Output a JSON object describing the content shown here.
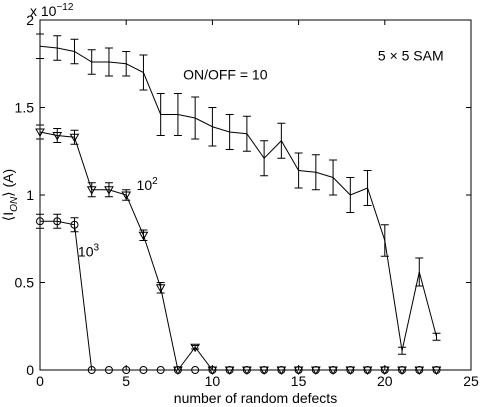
{
  "chart_data": {
    "type": "line",
    "xlabel": "number of random defects",
    "ylabel": {
      "main": "⟨I",
      "sub": "ON",
      "tail": "⟩ (A)"
    },
    "multiplier": {
      "base": "x 10",
      "exp": "−12"
    },
    "x": [
      0,
      1,
      2,
      3,
      4,
      5,
      6,
      7,
      8,
      9,
      10,
      11,
      12,
      13,
      14,
      15,
      16,
      17,
      18,
      19,
      20,
      21,
      22,
      23
    ],
    "series": [
      {
        "color": "#000000",
        "marker": "none",
        "values": [
          1.85,
          1.84,
          1.82,
          1.76,
          1.76,
          1.75,
          1.7,
          1.46,
          1.46,
          1.44,
          1.39,
          1.36,
          1.35,
          1.21,
          1.31,
          1.14,
          1.13,
          1.1,
          1.0,
          1.04,
          0.74,
          0.11,
          0.56,
          0.19
        ],
        "errors": [
          0.07,
          0.07,
          0.07,
          0.07,
          0.08,
          0.07,
          0.1,
          0.12,
          0.12,
          0.12,
          0.11,
          0.1,
          0.1,
          0.1,
          0.1,
          0.1,
          0.1,
          0.1,
          0.1,
          0.1,
          0.09,
          0.02,
          0.08,
          0.02
        ]
      },
      {
        "color": "#000000",
        "marker": "triangle",
        "values": [
          1.36,
          1.34,
          1.33,
          1.03,
          1.03,
          1.0,
          0.77,
          0.47,
          0,
          0.13,
          0,
          0,
          0,
          0,
          0,
          0,
          0,
          0,
          0,
          0,
          0,
          0,
          0,
          0
        ],
        "errors": [
          0.04,
          0.04,
          0.04,
          0.04,
          0.04,
          0.03,
          0.03,
          0.03,
          0,
          0.01,
          0,
          0,
          0,
          0,
          0,
          0,
          0,
          0,
          0,
          0,
          0,
          0,
          0,
          0
        ]
      },
      {
        "color": "#000000",
        "marker": "circle",
        "values": [
          0.85,
          0.85,
          0.83,
          0,
          0,
          0,
          0,
          0,
          0,
          0,
          0,
          0,
          0,
          0,
          0,
          0,
          0,
          0,
          0,
          0,
          0,
          0,
          0,
          0
        ],
        "errors": [
          0.04,
          0.04,
          0.04,
          0,
          0,
          0,
          0,
          0,
          0,
          0,
          0,
          0,
          0,
          0,
          0,
          0,
          0,
          0,
          0,
          0,
          0,
          0,
          0,
          0
        ]
      }
    ],
    "annotations": [
      {
        "text": "ON/OFF = 10",
        "x": 8.3,
        "y": 1.66
      },
      {
        "text": "10",
        "sup": "2",
        "x": 5.6,
        "y": 1.03
      },
      {
        "text": "10",
        "sup": "3",
        "x": 2.2,
        "y": 0.65
      },
      {
        "text": "5 × 5 SAM",
        "x": 19.6,
        "y": 1.77
      }
    ],
    "xlim": [
      0,
      25
    ],
    "xticks": [
      0,
      5,
      10,
      15,
      20,
      25
    ],
    "ylim": [
      0,
      2
    ],
    "yticks": [
      0,
      0.5,
      1,
      1.5,
      2
    ]
  }
}
